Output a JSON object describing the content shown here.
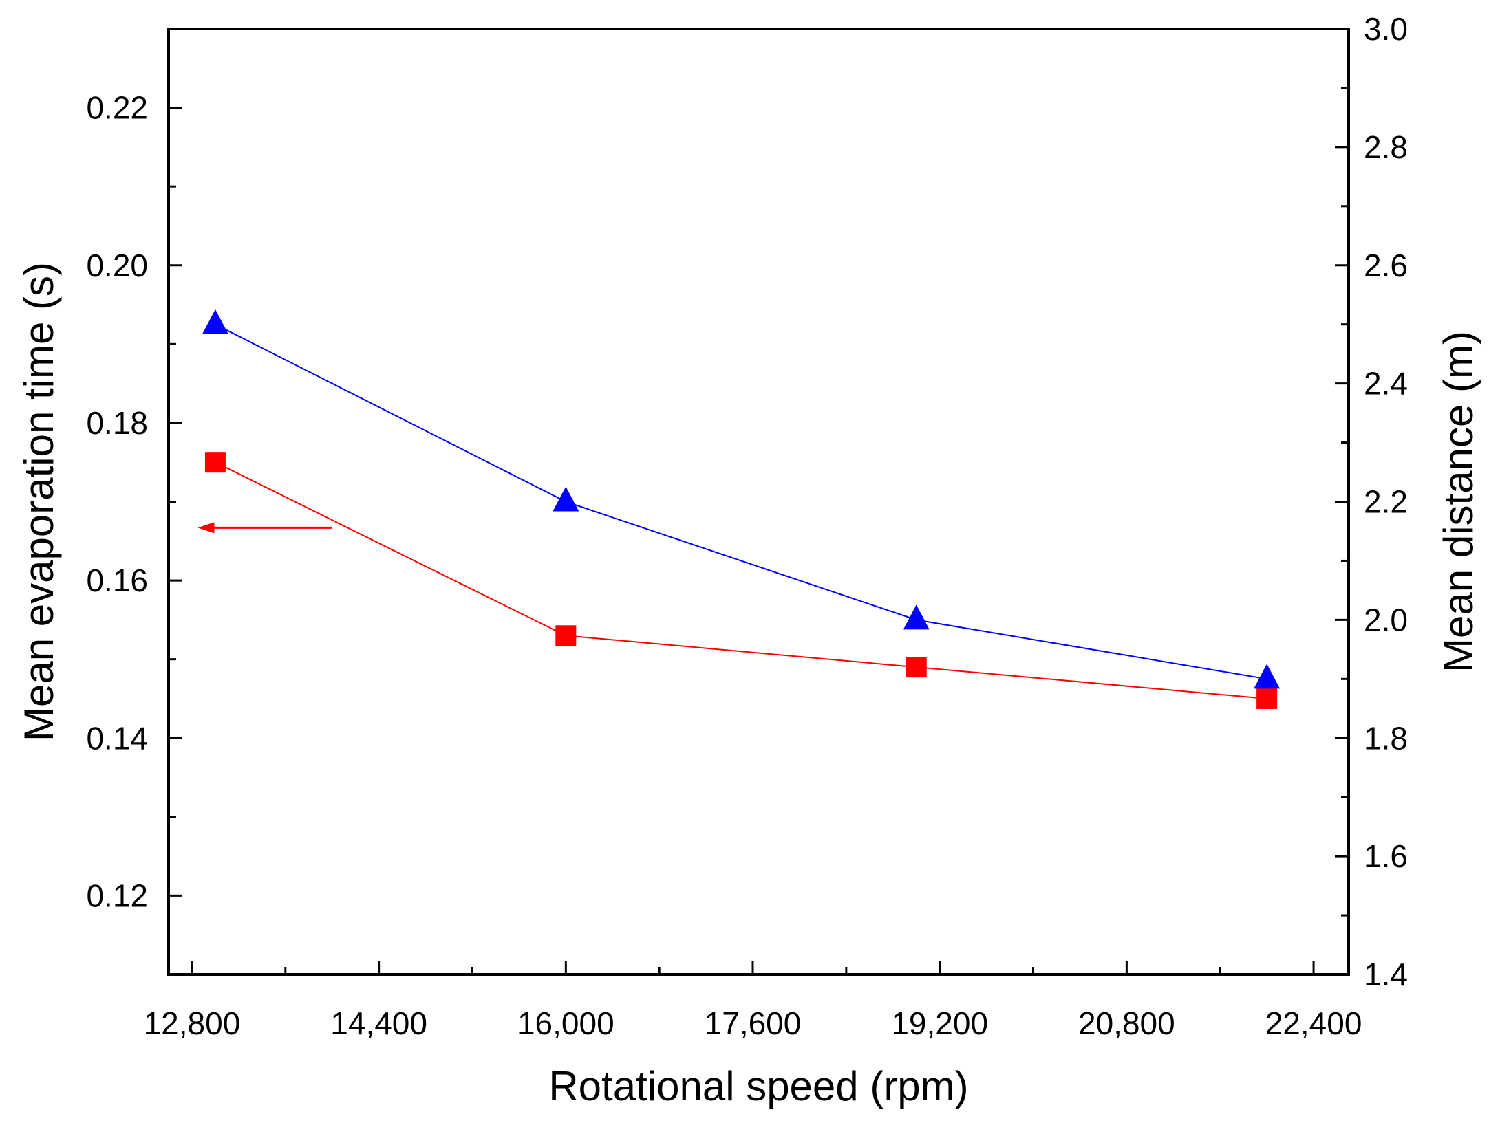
{
  "chart_data": {
    "type": "line",
    "title": "",
    "xlabel": "Rotational speed (rpm)",
    "ylabel_left": "Mean evaporation time (s)",
    "ylabel_right": "Mean distance (m)",
    "xlim": [
      12600,
      22700
    ],
    "ylim_left": [
      0.11,
      0.23
    ],
    "ylim_right": [
      1.4,
      3.0
    ],
    "x_ticks": [
      12800,
      14400,
      16000,
      17600,
      19200,
      20800,
      22400
    ],
    "x_tick_labels": [
      "12,800",
      "14,400",
      "16,000",
      "17,600",
      "19,200",
      "20,800",
      "22,400"
    ],
    "y_left_ticks": [
      0.12,
      0.14,
      0.16,
      0.18,
      0.2,
      0.22
    ],
    "y_left_tick_labels": [
      "0.12",
      "0.14",
      "0.16",
      "0.18",
      "0.20",
      "0.22"
    ],
    "y_right_ticks": [
      1.4,
      1.6,
      1.8,
      2.0,
      2.2,
      2.4,
      2.6,
      2.8,
      3.0
    ],
    "y_right_tick_labels": [
      "1.4",
      "1.6",
      "1.8",
      "2.0",
      "2.2",
      "2.4",
      "2.6",
      "2.8",
      "3.0"
    ],
    "grid": false,
    "x": [
      13000,
      16000,
      19000,
      22000
    ],
    "series": [
      {
        "axis": "left",
        "marker": "square",
        "color": "#ff0000",
        "values": [
          0.175,
          0.153,
          0.149,
          0.145
        ]
      },
      {
        "axis": "right",
        "marker": "triangle",
        "color": "#0000ff",
        "values": [
          2.5,
          2.2,
          2.0,
          1.9
        ]
      }
    ],
    "annotations": [
      {
        "type": "arrow",
        "color": "#ff0000",
        "points_to": "left-axis",
        "from": [
          14000,
          0.1667
        ],
        "to": [
          12850,
          0.1667
        ]
      }
    ]
  }
}
